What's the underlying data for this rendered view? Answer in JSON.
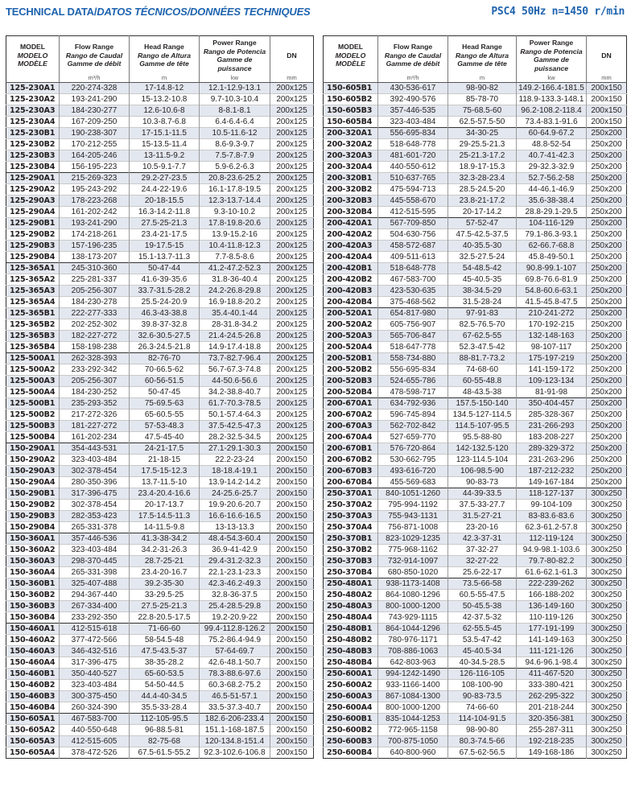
{
  "header": {
    "title_main": "TECHNICAL DATA/",
    "title_italic": "DATOS TÉCNICOS/DONNÉES TECHNIQUES",
    "subtitle": "PSC4 50Hz n=1450 r/min",
    "accent_color": "#1e63ae"
  },
  "columns": {
    "model": [
      "MODEL",
      "MODELO",
      "MODÈLE"
    ],
    "flow": [
      "Flow Range",
      "Rango de Caudal",
      "Gamme de débit"
    ],
    "head": [
      "Head Range",
      "Rango de Altura",
      "Gamme de tête"
    ],
    "power": [
      "Power Range",
      "Rango de Potencia",
      "Gamme de puissance"
    ],
    "dn": "DN",
    "units": [
      "",
      "m³/h",
      "m",
      "kw",
      "mm"
    ]
  },
  "tables": [
    {
      "rows": [
        [
          "125-230A1",
          "220-274-328",
          "17-14.8-12",
          "12.1-12.9-13.1",
          "200x125"
        ],
        [
          "125-230A2",
          "193-241-290",
          "15-13.2-10.8",
          "9.7-10.3-10.4",
          "200x125"
        ],
        [
          "125-230A3",
          "184-230-277",
          "12.6-10.6-8",
          "8-8.1-8.1",
          "200x125"
        ],
        [
          "125-230A4",
          "167-209-250",
          "10.3-8.7-6.8",
          "6.4-6.4-6.4",
          "200x125"
        ],
        [
          "125-230B1",
          "190-238-307",
          "17-15.1-11.5",
          "10.5-11.6-12",
          "200x125"
        ],
        [
          "125-230B2",
          "170-212-255",
          "15-13.5-11.4",
          "8.6-9.3-9.7",
          "200x125"
        ],
        [
          "125-230B3",
          "164-205-246",
          "13-11.5-9.2",
          "7.5-7.8-7.9",
          "200x125"
        ],
        [
          "125-230B4",
          "156-195-223",
          "10.5-9.1-7.7",
          "5.9-6.2-6.3",
          "200x125"
        ],
        [
          "125-290A1",
          "215-269-323",
          "29.2-27-23.5",
          "20.8-23.6-25.2",
          "200x125"
        ],
        [
          "125-290A2",
          "195-243-292",
          "24.4-22-19.6",
          "16.1-17.8-19.5",
          "200x125"
        ],
        [
          "125-290A3",
          "178-223-268",
          "20-18-15.5",
          "12.3-13.7-14.4",
          "200x125"
        ],
        [
          "125-290A4",
          "161-202-242",
          "16.3-14.2-11.8",
          "9.3-10-10.2",
          "200x125"
        ],
        [
          "125-290B1",
          "193-241-290",
          "27.5-25-21.3",
          "17.8-19.8-20.6",
          "200x125"
        ],
        [
          "125-290B2",
          "174-218-261",
          "23.4-21-17.5",
          "13.9-15.2-16",
          "200x125"
        ],
        [
          "125-290B3",
          "157-196-235",
          "19-17.5-15",
          "10.4-11.8-12.3",
          "200x125"
        ],
        [
          "125-290B4",
          "138-173-207",
          "15.1-13.7-11.3",
          "7.7-8.5-8.6",
          "200x125"
        ],
        [
          "125-365A1",
          "245-310-360",
          "50-47-44",
          "41.2-47.2-52.3",
          "200x125"
        ],
        [
          "125-365A2",
          "225-281-337",
          "41.6-39-35.6",
          "31.8-36-40.4",
          "200x125"
        ],
        [
          "125-365A3",
          "205-256-307",
          "33.7-31.5-28.2",
          "24.2-26.8-29.8",
          "200x125"
        ],
        [
          "125-365A4",
          "184-230-278",
          "25.5-24-20.9",
          "16.9-18.8-20.2",
          "200x125"
        ],
        [
          "125-365B1",
          "222-277-333",
          "46.3-43-38.8",
          "35.4-40.1-44",
          "200x125"
        ],
        [
          "125-365B2",
          "202-252-302",
          "39.8-37-32.8",
          "28-31.8-34.2",
          "200x125"
        ],
        [
          "125-365B3",
          "182-227-272",
          "32.6-30.5-27.5",
          "21.4-24.5-26.8",
          "200x125"
        ],
        [
          "125-365B4",
          "158-198-238",
          "26.3-24.5-21.8",
          "14.9-17.4-18.8",
          "200x125"
        ],
        [
          "125-500A1",
          "262-328-393",
          "82-76-70",
          "73.7-82.7-96.4",
          "200x125"
        ],
        [
          "125-500A2",
          "233-292-342",
          "70-66.5-62",
          "56.7-67.3-74.8",
          "200x125"
        ],
        [
          "125-500A3",
          "205-256-307",
          "60-56-51.5",
          "44-50.6-56.6",
          "200x125"
        ],
        [
          "125-500A4",
          "184-230-252",
          "50-47-45",
          "34.2-38.8-40.7",
          "200x125"
        ],
        [
          "125-500B1",
          "235-293-352",
          "75-69.5-63",
          "61.7-70.3-78.5",
          "200x125"
        ],
        [
          "125-500B2",
          "217-272-326",
          "65-60.5-55",
          "50.1-57.4-64.3",
          "200x125"
        ],
        [
          "125-500B3",
          "181-227-272",
          "57-53-48.3",
          "37.5-42.5-47.3",
          "200x125"
        ],
        [
          "125-500B4",
          "161-202-234",
          "47.5-45-40",
          "28.2-32.5-34.5",
          "200x125"
        ],
        [
          "150-290A1",
          "354-443-531",
          "24-21-17.5",
          "27.1-29.1-30.3",
          "200x150"
        ],
        [
          "150-290A2",
          "323-403-484",
          "21-18-15",
          "22.2-23-24",
          "200x150"
        ],
        [
          "150-290A3",
          "302-378-454",
          "17.5-15-12.3",
          "18-18.4-19.1",
          "200x150"
        ],
        [
          "150-290A4",
          "280-350-396",
          "13.7-11.5-10",
          "13.9-14.2-14.2",
          "200x150"
        ],
        [
          "150-290B1",
          "317-396-475",
          "23.4-20.4-16.6",
          "24-25.6-25.7",
          "200x150"
        ],
        [
          "150-290B2",
          "302-378-454",
          "20-17-13.7",
          "19.9-20.6-20.7",
          "200x150"
        ],
        [
          "150-290B3",
          "282-353-423",
          "17.5-14.5-11.3",
          "16.6-16.6-16.5",
          "200x150"
        ],
        [
          "150-290B4",
          "265-331-378",
          "14-11.5-9.8",
          "13-13-13.3",
          "200x150"
        ],
        [
          "150-360A1",
          "357-446-536",
          "41.3-38-34.2",
          "48.4-54.3-60.4",
          "200x150"
        ],
        [
          "150-360A2",
          "323-403-484",
          "34.2-31-26.3",
          "36.9-41-42.9",
          "200x150"
        ],
        [
          "150-360A3",
          "298-370-445",
          "28.7-25-21",
          "29.4-31.2-32.3",
          "200x150"
        ],
        [
          "150-360A4",
          "265-331-398",
          "23.4-20-16.7",
          "22.1-23.1-23.3",
          "200x150"
        ],
        [
          "150-360B1",
          "325-407-488",
          "39.2-35-30",
          "42.3-46.2-49.3",
          "200x150"
        ],
        [
          "150-360B2",
          "294-367-440",
          "33-29.5-25",
          "32.8-36-37.5",
          "200x150"
        ],
        [
          "150-360B3",
          "267-334-400",
          "27.5-25-21.3",
          "25.4-28.5-29.8",
          "200x150"
        ],
        [
          "150-360B4",
          "233-292-350",
          "22.8-20.5-17.5",
          "19.2-20.9-22",
          "200x150"
        ],
        [
          "150-460A1",
          "412-515-618",
          "71-66-60",
          "99.4-112.8-126.2",
          "200x150"
        ],
        [
          "150-460A2",
          "377-472-566",
          "58-54.5-48",
          "75.2-86.4-94.9",
          "200x150"
        ],
        [
          "150-460A3",
          "346-432-516",
          "47.5-43.5-37",
          "57-64-69.7",
          "200x150"
        ],
        [
          "150-460A4",
          "317-396-475",
          "38-35-28.2",
          "42.6-48.1-50.7",
          "200x150"
        ],
        [
          "150-460B1",
          "350-440-527",
          "65-60-53.5",
          "78.3-88.6-97.6",
          "200x150"
        ],
        [
          "150-460B2",
          "323-403-484",
          "54-50-44.5",
          "60.3-68.2-75.2",
          "200x150"
        ],
        [
          "150-460B3",
          "300-375-450",
          "44.4-40-34.5",
          "46.5-51-57.1",
          "200x150"
        ],
        [
          "150-460B4",
          "260-324-390",
          "35.5-33-28.4",
          "33.5-37.3-40.7",
          "200x150"
        ],
        [
          "150-605A1",
          "467-583-700",
          "112-105-95.5",
          "182.6-206-233.4",
          "200x150"
        ],
        [
          "150-605A2",
          "440-550-648",
          "96-88.5-81",
          "151.1-168-187.5",
          "200x150"
        ],
        [
          "150-605A3",
          "412-515-605",
          "82-75-68",
          "120-134.8-151.4",
          "200x150"
        ],
        [
          "150-605A4",
          "378-472-526",
          "67.5-61.5-55.2",
          "92.3-102.6-106.8",
          "200x150"
        ]
      ]
    },
    {
      "rows": [
        [
          "150-605B1",
          "430-536-617",
          "98-90-82",
          "149.2-166.4-181.5",
          "200x150"
        ],
        [
          "150-605B2",
          "392-490-576",
          "85-78-70",
          "118.9-133.3-148.1",
          "200x150"
        ],
        [
          "150-605B3",
          "357-446-535",
          "75-68.5-60",
          "96.2-108.2-118.4",
          "200x150"
        ],
        [
          "150-605B4",
          "323-403-484",
          "62.5-57.5-50",
          "73.4-83.1-91.6",
          "200x150"
        ],
        [
          "200-320A1",
          "556-695-834",
          "34-30-25",
          "60-64.9-67.2",
          "250x200"
        ],
        [
          "200-320A2",
          "518-648-778",
          "29-25.5-21.3",
          "48.8-52-54",
          "250x200"
        ],
        [
          "200-320A3",
          "481-601-720",
          "25-21.3-17.2",
          "40.7-41-42.3",
          "250x200"
        ],
        [
          "200-320A4",
          "440-550-612",
          "18.9-17-15.3",
          "29-32.3-32.9",
          "250x200"
        ],
        [
          "200-320B1",
          "510-637-765",
          "32.3-28-23.4",
          "52.7-56.2-58",
          "250x200"
        ],
        [
          "200-320B2",
          "475-594-713",
          "28.5-24.5-20",
          "44-46.1-46.9",
          "250x200"
        ],
        [
          "200-320B3",
          "445-558-670",
          "23.8-21-17.2",
          "35.6-38-38.4",
          "250x200"
        ],
        [
          "200-320B4",
          "412-515-595",
          "20-17-14.2",
          "28.8-29.1-29.5",
          "250x200"
        ],
        [
          "200-420A1",
          "567-709-850",
          "57-52-47",
          "104-116-129",
          "250x200"
        ],
        [
          "200-420A2",
          "504-630-756",
          "47.5-42.5-37.5",
          "79.1-86.3-93.1",
          "250x200"
        ],
        [
          "200-420A3",
          "458-572-687",
          "40-35.5-30",
          "62-66.7-68.8",
          "250x200"
        ],
        [
          "200-420A4",
          "409-511-613",
          "32.5-27.5-24",
          "45.8-49-50.1",
          "250x200"
        ],
        [
          "200-420B1",
          "518-648-778",
          "54-48.5-42",
          "90.8-99.1-107",
          "250x200"
        ],
        [
          "200-420B2",
          "467-583-700",
          "45-40.5-35",
          "69.8-76.6-81.9",
          "250x200"
        ],
        [
          "200-420B3",
          "423-530-635",
          "38-34.5-29",
          "54.8-60.6-63.1",
          "250x200"
        ],
        [
          "200-420B4",
          "375-468-562",
          "31.5-28-24",
          "41.5-45.8-47.5",
          "250x200"
        ],
        [
          "200-520A1",
          "654-817-980",
          "97-91-83",
          "210-241-272",
          "250x200"
        ],
        [
          "200-520A2",
          "605-756-907",
          "82.5-76.5-70",
          "170-192-215",
          "250x200"
        ],
        [
          "200-520A3",
          "565-706-847",
          "67-62.5-55",
          "132-148-163",
          "250x200"
        ],
        [
          "200-520A4",
          "518-647-778",
          "52.3-47.5-42",
          "98-107-117",
          "250x200"
        ],
        [
          "200-520B1",
          "558-734-880",
          "88-81.7-73.2",
          "175-197-219",
          "250x200"
        ],
        [
          "200-520B2",
          "556-695-834",
          "74-68-60",
          "141-159-172",
          "250x200"
        ],
        [
          "200-520B3",
          "524-655-786",
          "60-55-48.8",
          "109-123-134",
          "250x200"
        ],
        [
          "200-520B4",
          "478-598-717",
          "48-43.5-38",
          "81-91-98",
          "250x200"
        ],
        [
          "200-670A1",
          "634-792-936",
          "157.5-150-140",
          "350-404-457",
          "250x200"
        ],
        [
          "200-670A2",
          "596-745-894",
          "134.5-127-114.5",
          "285-328-367",
          "250x200"
        ],
        [
          "200-670A3",
          "562-702-842",
          "114.5-107-95.5",
          "231-266-293",
          "250x200"
        ],
        [
          "200-670A4",
          "527-659-770",
          "95.5-88-80",
          "183-208-227",
          "250x200"
        ],
        [
          "200-670B1",
          "576-720-864",
          "142-132.5-120",
          "289-329-372",
          "250x200"
        ],
        [
          "200-670B2",
          "530-662-795",
          "123-114.5-104",
          "231-263-296",
          "250x200"
        ],
        [
          "200-670B3",
          "493-616-720",
          "106-98.5-90",
          "187-212-232",
          "250x200"
        ],
        [
          "200-670B4",
          "455-569-683",
          "90-83-73",
          "149-167-184",
          "250x200"
        ],
        [
          "250-370A1",
          "840-1051-1260",
          "44-39-33.5",
          "118-127-137",
          "300x250"
        ],
        [
          "250-370A2",
          "795-994-1192",
          "37.5-33-27.7",
          "99-104-109",
          "300x250"
        ],
        [
          "250-370A3",
          "755-943-1131",
          "31.5-27-21",
          "83-83.6-83.6",
          "300x250"
        ],
        [
          "250-370A4",
          "756-871-1008",
          "23-20-16",
          "62.3-61.2-57.8",
          "300x250"
        ],
        [
          "250-370B1",
          "823-1029-1235",
          "42.3-37-31",
          "112-119-124",
          "300x250"
        ],
        [
          "250-370B2",
          "775-968-1162",
          "37-32-27",
          "94.9-98.1-103.6",
          "300x250"
        ],
        [
          "250-370B3",
          "732-914-1097",
          "32-27-22",
          "79.7-80-82.2",
          "300x250"
        ],
        [
          "250-370B4",
          "680-850-1020",
          "25.6-22-17",
          "61.6-62.1-61.3",
          "300x250"
        ],
        [
          "250-480A1",
          "938-1173-1408",
          "73.5-66-58",
          "222-239-262",
          "300x250"
        ],
        [
          "250-480A2",
          "864-1080-1296",
          "60.5-55-47.5",
          "166-188-202",
          "300x250"
        ],
        [
          "250-480A3",
          "800-1000-1200",
          "50-45.5-38",
          "136-149-160",
          "300x250"
        ],
        [
          "250-480A4",
          "743-929-1115",
          "42-37.5-32",
          "110-119-126",
          "300x250"
        ],
        [
          "250-480B1",
          "864-1044-1296",
          "62-55.5-45",
          "177-191-199",
          "300x250"
        ],
        [
          "250-480B2",
          "780-976-1171",
          "53.5-47-42",
          "141-149-163",
          "300x250"
        ],
        [
          "250-480B3",
          "708-886-1063",
          "45-40.5-34",
          "111-121-126",
          "300x250"
        ],
        [
          "250-480B4",
          "642-803-963",
          "40-34.5-28.5",
          "94.6-96.1-98.4",
          "300x250"
        ],
        [
          "250-600A1",
          "994-1242-1490",
          "126-116-105",
          "411-467-520",
          "300x250"
        ],
        [
          "250-600A2",
          "933-1166-1400",
          "108-100-90",
          "333-380-421",
          "300x250"
        ],
        [
          "250-600A3",
          "867-1084-1300",
          "90-83-73.5",
          "262-295-322",
          "300x250"
        ],
        [
          "250-600A4",
          "800-1000-1200",
          "74-66-60",
          "201-218-244",
          "300x250"
        ],
        [
          "250-600B1",
          "835-1044-1253",
          "114-104-91.5",
          "320-356-381",
          "300x250"
        ],
        [
          "250-600B2",
          "772-965-1158",
          "98-90-80",
          "255-287-311",
          "300x250"
        ],
        [
          "250-600B3",
          "700-875-1050",
          "80.3-74.5-66",
          "192-218-235",
          "300x250"
        ],
        [
          "250-600B4",
          "640-800-960",
          "67.5-62-56.5",
          "149-168-186",
          "300x250"
        ]
      ]
    }
  ]
}
